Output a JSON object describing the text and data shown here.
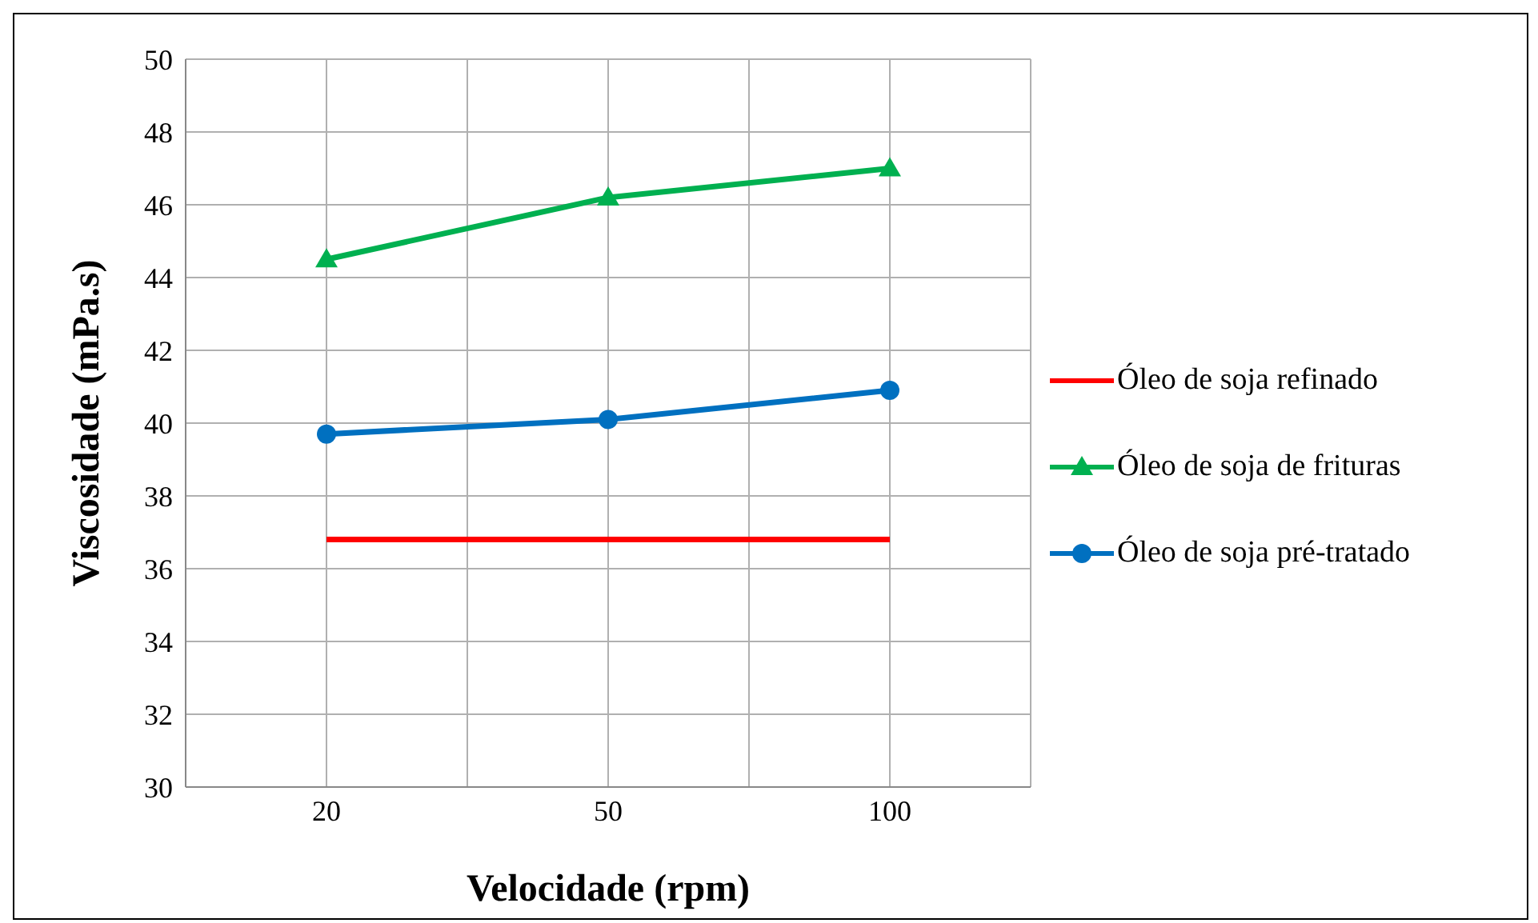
{
  "chart_data": {
    "type": "line",
    "xlabel": "Velocidade (rpm)",
    "ylabel": "Viscosidade  (mPa.s)",
    "categories": [
      "20",
      "50",
      "100"
    ],
    "series": [
      {
        "name": "Óleo de soja refinado",
        "color": "#ff0000",
        "values": [
          36.8,
          36.8,
          36.8
        ],
        "marker": "none"
      },
      {
        "name": "Óleo de soja de frituras",
        "color": "#00b050",
        "values": [
          44.5,
          46.2,
          47.0
        ],
        "marker": "triangle"
      },
      {
        "name": "Óleo de soja pré-tratado",
        "color": "#0070c0",
        "values": [
          39.7,
          40.1,
          40.9
        ],
        "marker": "circle"
      }
    ],
    "ylim": [
      30,
      50
    ],
    "yticks": [
      30,
      32,
      34,
      36,
      38,
      40,
      42,
      44,
      46,
      48,
      50
    ],
    "grid": true,
    "legend": "right"
  }
}
